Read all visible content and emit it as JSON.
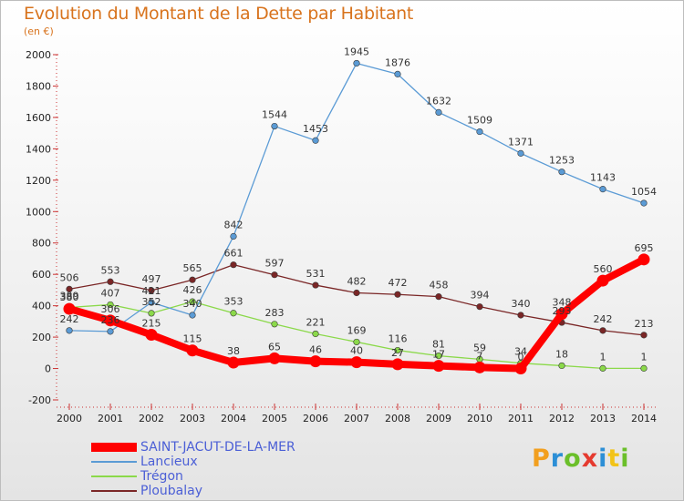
{
  "header": {
    "title": "Evolution du Montant de la Dette par Habitant",
    "subtitle": "(en €)"
  },
  "logo": {
    "text": "Proxiti",
    "colors": [
      "#f29f1e",
      "#2c8fd6",
      "#6bbf2a",
      "#e53a2f",
      "#2c8fd6",
      "#f2c318",
      "#6bbf2a"
    ]
  },
  "chart_data": {
    "type": "line",
    "title": "Evolution du Montant de la Dette par Habitant",
    "subtitle": "(en €)",
    "xlabel": "",
    "ylabel": "",
    "x": [
      "2000",
      "2001",
      "2002",
      "2003",
      "2004",
      "2005",
      "2006",
      "2007",
      "2008",
      "2009",
      "2010",
      "2011",
      "2012",
      "2013",
      "2014"
    ],
    "ylim": [
      -200,
      2000
    ],
    "yticks": [
      -200,
      0,
      200,
      400,
      600,
      800,
      1000,
      1200,
      1400,
      1600,
      1800,
      2000
    ],
    "grid": false,
    "legend_position": "bottom-left",
    "series": [
      {
        "name": "Ploubalay",
        "color": "#7a2626",
        "values": [
          506,
          553,
          497,
          565,
          661,
          597,
          531,
          482,
          472,
          458,
          394,
          340,
          293,
          242,
          213
        ]
      },
      {
        "name": "Trégon",
        "color": "#8bd94a",
        "values": [
          389,
          407,
          352,
          426,
          353,
          283,
          221,
          169,
          116,
          81,
          59,
          34,
          18,
          1,
          1
        ]
      },
      {
        "name": "Lancieux",
        "color": "#5b9bd5",
        "values": [
          242,
          236,
          421,
          340,
          842,
          1544,
          1453,
          1945,
          1876,
          1632,
          1509,
          1371,
          1253,
          1143,
          1054
        ]
      },
      {
        "name": "SAINT-JACUT-DE-LA-MER",
        "color": "#ff0000",
        "values": [
          380,
          306,
          215,
          115,
          38,
          65,
          46,
          40,
          27,
          17,
          7,
          0,
          348,
          560,
          695
        ]
      }
    ]
  }
}
